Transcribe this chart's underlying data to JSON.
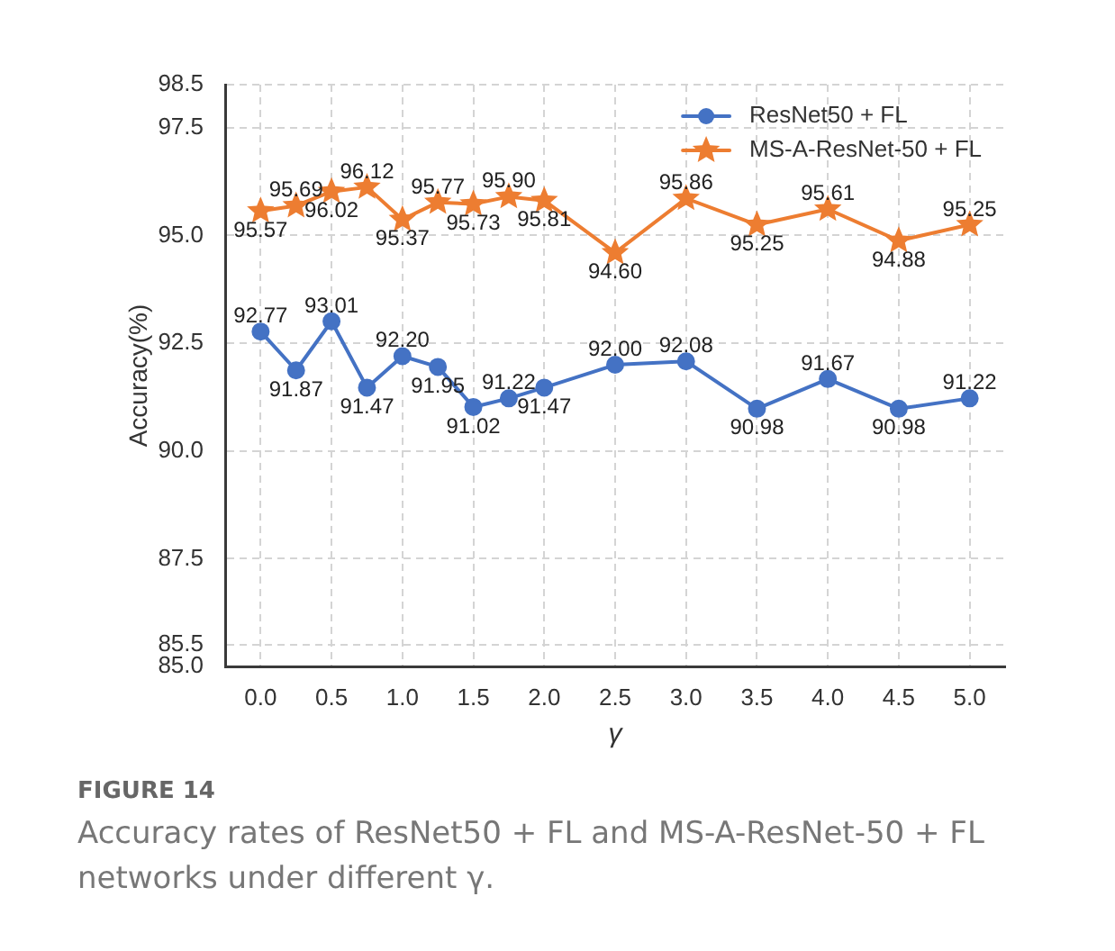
{
  "chart_data": {
    "type": "line",
    "xlabel": "γ",
    "ylabel": "Accuracy(%)",
    "annotations": [
      "FIGURE 14",
      "Accuracy rates of ResNet50 + FL and MS-A-ResNet-50 + FL networks under different γ."
    ],
    "x": [
      0,
      0.25,
      0.5,
      0.75,
      1,
      1.25,
      1.5,
      1.75,
      2,
      2.5,
      3,
      3.5,
      4,
      4.5,
      5
    ],
    "series": [
      {
        "name": "ResNet50 + FL",
        "color": "#4472c4",
        "marker": "circle",
        "values": [
          92.77,
          91.87,
          93.01,
          91.47,
          92.2,
          91.95,
          91.02,
          91.22,
          91.47,
          92.0,
          92.08,
          90.98,
          91.67,
          90.98,
          91.22
        ],
        "value_labels": [
          "92.77",
          "91.87",
          "93.01",
          "91.47",
          "92.20",
          "91.95",
          "91.02",
          "91.22",
          "91.47",
          "92.00",
          "92.08",
          "90.98",
          "91.67",
          "90.98",
          "91.22"
        ]
      },
      {
        "name": "MS-A-ResNet-50 + FL",
        "color": "#ed7d31",
        "marker": "star",
        "values": [
          95.57,
          95.69,
          96.02,
          96.12,
          95.37,
          95.77,
          95.73,
          95.9,
          95.81,
          94.6,
          95.86,
          95.25,
          95.61,
          94.88,
          95.25
        ],
        "value_labels": [
          "95.57",
          "95.69",
          "96.02",
          "96.12",
          "95.37",
          "95.77",
          "95.73",
          "95.90",
          "95.81",
          "94.60",
          "95.86",
          "95.25",
          "95.61",
          "94.88",
          "95.25"
        ]
      }
    ],
    "xlim": [
      -0.25,
      5.25
    ],
    "xticks": [
      {
        "value": 0,
        "label": "0.0"
      },
      0.5,
      {
        "value": 1,
        "label": "1.0"
      },
      1.5,
      {
        "value": 2,
        "label": "2.0"
      },
      2.5,
      {
        "value": 3,
        "label": "3.0"
      },
      3.5,
      {
        "value": 4,
        "label": "4.0"
      },
      4.5,
      {
        "value": 5,
        "label": "5.0"
      }
    ],
    "ylim": [
      85,
      98.5
    ],
    "yticks": [
      {
        "value": 85,
        "label": "85.0"
      },
      85.5,
      87.5,
      {
        "value": 90,
        "label": "90.0"
      },
      92.5,
      {
        "value": 95,
        "label": "95.0"
      },
      97.5,
      98.5
    ],
    "grid": true,
    "legend": "top right",
    "line_style": "solid"
  }
}
